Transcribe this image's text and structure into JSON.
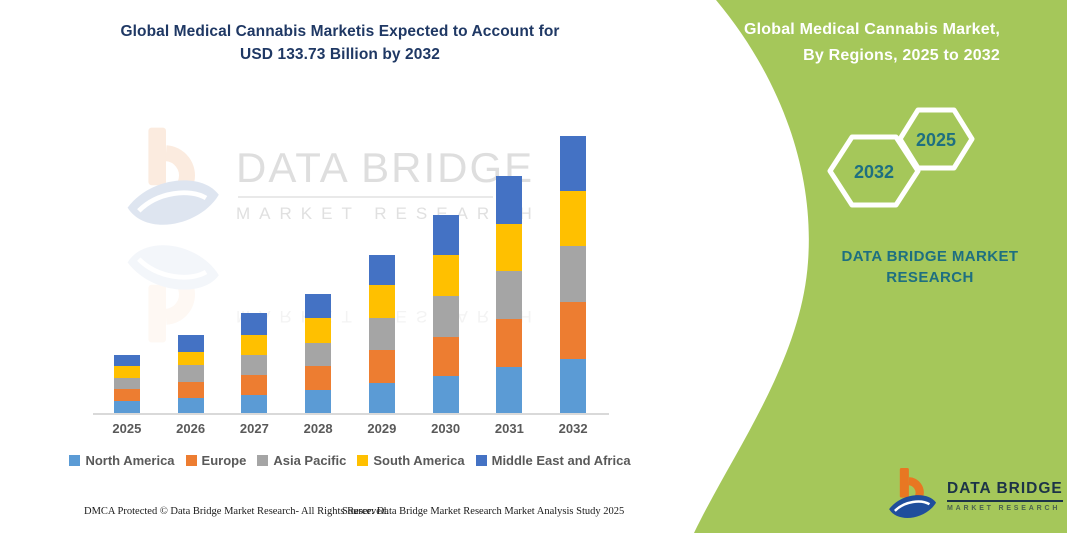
{
  "title": {
    "line1": "Global Medical Cannabis Marketis Expected to Account for",
    "line2": "USD 133.73 Billion by 2032"
  },
  "right_panel": {
    "heading_line1": "Global Medical Cannabis Market,",
    "heading_line2": "By Regions, 2025 to 2032",
    "hex_back_label": "2032",
    "hex_front_label": "2025",
    "brand_line1": "DATA BRIDGE MARKET",
    "brand_line2": "RESEARCH"
  },
  "logo": {
    "name": "DATA BRIDGE",
    "tagline": "MARKET RESEARCH"
  },
  "watermark": {
    "name": "DATA BRIDGE",
    "tagline": "MARKET RESEARCH"
  },
  "footer": {
    "left": "DMCA Protected © Data Bridge Market Research-  All Rights Reserved.",
    "source": "Source: Data Bridge Market Research  Market Analysis Study 2025"
  },
  "colors": {
    "green": "#a5c75a",
    "navy": "#1f3864",
    "teal": "#1e6f80",
    "axis_text": "#595959",
    "axis_line": "#d9d9d9",
    "logo_orange": "#e87722",
    "logo_blue": "#1f4e9c"
  },
  "chart_data": {
    "type": "bar",
    "stacked": true,
    "title": "Global Medical Cannabis Marketis Expected to Account for USD 133.73 Billion by 2032",
    "xlabel": "",
    "ylabel": "",
    "unit": "USD Billion",
    "grid": false,
    "legend_position": "bottom",
    "ylim": [
      0,
      140
    ],
    "categories": [
      "2025",
      "2026",
      "2027",
      "2028",
      "2029",
      "2030",
      "2031",
      "2032"
    ],
    "series": [
      {
        "name": "North America",
        "color": "#5B9BD5",
        "values": [
          6.1,
          7.7,
          9.3,
          11.7,
          14.9,
          18.1,
          22.6,
          26.5
        ]
      },
      {
        "name": "Europe",
        "color": "#ED7D31",
        "values": [
          5.9,
          7.7,
          9.6,
          11.2,
          15.9,
          19.2,
          23.1,
          27.3
        ]
      },
      {
        "name": "Asia Pacific",
        "color": "#A5A5A5",
        "values": [
          5.3,
          8.0,
          9.6,
          11.5,
          15.2,
          19.6,
          22.9,
          26.9
        ]
      },
      {
        "name": "South America",
        "color": "#FFC000",
        "values": [
          5.6,
          6.7,
          9.6,
          11.7,
          16.0,
          19.7,
          22.9,
          26.5
        ]
      },
      {
        "name": "Middle East and Africa",
        "color": "#4472C4",
        "values": [
          5.6,
          8.0,
          10.4,
          11.7,
          14.4,
          18.9,
          23.1,
          26.5
        ]
      }
    ],
    "totals_estimated": [
      28.5,
      38.1,
      48.5,
      57.8,
      76.4,
      95.5,
      114.6,
      133.7
    ],
    "stated_total_2032": 133.73,
    "note": "No y-axis shown; per-region values estimated from bar segment heights scaled to the stated 2032 total of USD 133.73 billion."
  }
}
